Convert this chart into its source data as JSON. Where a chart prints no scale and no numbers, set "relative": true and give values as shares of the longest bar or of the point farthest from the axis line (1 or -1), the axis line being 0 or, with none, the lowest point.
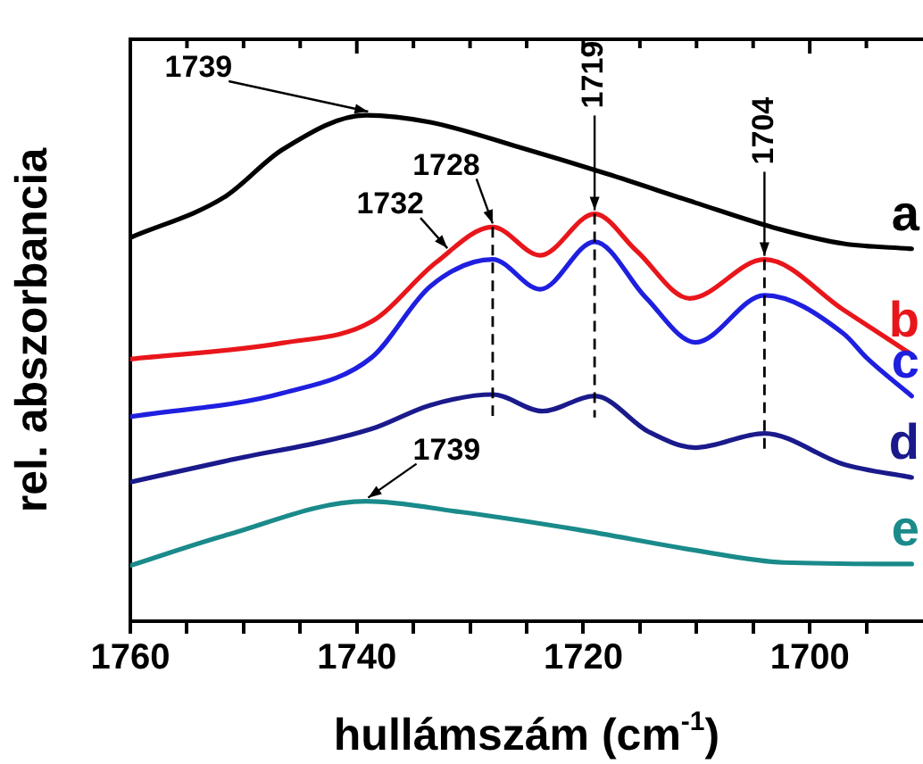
{
  "chart_data": {
    "type": "line",
    "relative": true,
    "xlabel": "hullámszám (cm$^{-1}$)",
    "ylabel": "rel. abszorbancia",
    "xlim": [
      1760,
      1690
    ],
    "xticks": [
      1760,
      {
        "value": 1755,
        "label": null
      },
      {
        "value": 1750,
        "label": null
      },
      {
        "value": 1745,
        "label": null
      },
      1740,
      {
        "value": 1735,
        "label": null
      },
      {
        "value": 1730,
        "label": null
      },
      {
        "value": 1725,
        "label": null
      },
      1720,
      {
        "value": 1715,
        "label": null
      },
      {
        "value": 1710,
        "label": null
      },
      {
        "value": 1705,
        "label": null
      },
      1700,
      {
        "value": 1695,
        "label": null
      }
    ],
    "legend": false,
    "grid": false,
    "marker": "none",
    "line_style": "solid",
    "series": [
      {
        "name": "a",
        "color": "#000000",
        "x": [
          1760,
          1751.7,
          1746.5,
          1739.2,
          1733.5,
          1725.7,
          1717.9,
          1710.1,
          1703.2,
          1697,
          1691
        ],
        "values": [
          0.758,
          0.838,
          0.933,
          1.0,
          0.986,
          0.937,
          0.884,
          0.827,
          0.778,
          0.746,
          0.736
        ]
      },
      {
        "name": "b",
        "color": "#e8161b",
        "x": [
          1760,
          1746.5,
          1738.7,
          1733,
          1728,
          1723.8,
          1719,
          1715.3,
          1710.6,
          1704,
          1697,
          1691
        ],
        "values": [
          0.518,
          0.55,
          0.592,
          0.709,
          0.779,
          0.723,
          0.805,
          0.732,
          0.638,
          0.715,
          0.615,
          0.527
        ]
      },
      {
        "name": "c",
        "color": "#1f1fe0",
        "x": [
          1760,
          1746.5,
          1738.7,
          1733.5,
          1728,
          1723.8,
          1719,
          1714.5,
          1710.1,
          1704,
          1697,
          1695,
          1691
        ],
        "values": [
          0.404,
          0.451,
          0.521,
          0.662,
          0.715,
          0.656,
          0.75,
          0.64,
          0.551,
          0.644,
          0.568,
          0.521,
          0.445
        ]
      },
      {
        "name": "d",
        "color": "#1a1a8c",
        "x": [
          1760,
          1751.7,
          1738.7,
          1733.5,
          1728,
          1723.6,
          1719,
          1714.2,
          1710.1,
          1704,
          1697,
          1691
        ],
        "values": [
          0.275,
          0.316,
          0.38,
          0.427,
          0.448,
          0.415,
          0.445,
          0.374,
          0.343,
          0.371,
          0.31,
          0.284
        ]
      },
      {
        "name": "e",
        "color": "#1a8a8a",
        "x": [
          1760,
          1751.7,
          1739.2,
          1730.9,
          1720.5,
          1710.1,
          1702.3,
          1691
        ],
        "values": [
          0.11,
          0.169,
          0.237,
          0.216,
          0.181,
          0.14,
          0.116,
          0.113
        ]
      }
    ],
    "annotations": [
      {
        "text": "1739",
        "x": 1739,
        "y": 1.0
      },
      {
        "text": "1728",
        "x": 1728,
        "y": 0.779
      },
      {
        "text": "1732",
        "x": 1732,
        "y": 0.73
      },
      {
        "text": "1719",
        "x": 1719,
        "y": 0.805
      },
      {
        "text": "1704",
        "x": 1704,
        "y": 0.715
      },
      {
        "text": "1739",
        "x": 1739,
        "y": 0.237
      }
    ],
    "ref_lines": [
      {
        "axis": "x",
        "value": 1728,
        "color": "#000000",
        "line_style": "dashed"
      },
      {
        "axis": "x",
        "value": 1719,
        "color": "#000000",
        "line_style": "dashed"
      },
      {
        "axis": "x",
        "value": 1704,
        "color": "#000000",
        "line_style": "dashed"
      }
    ]
  }
}
